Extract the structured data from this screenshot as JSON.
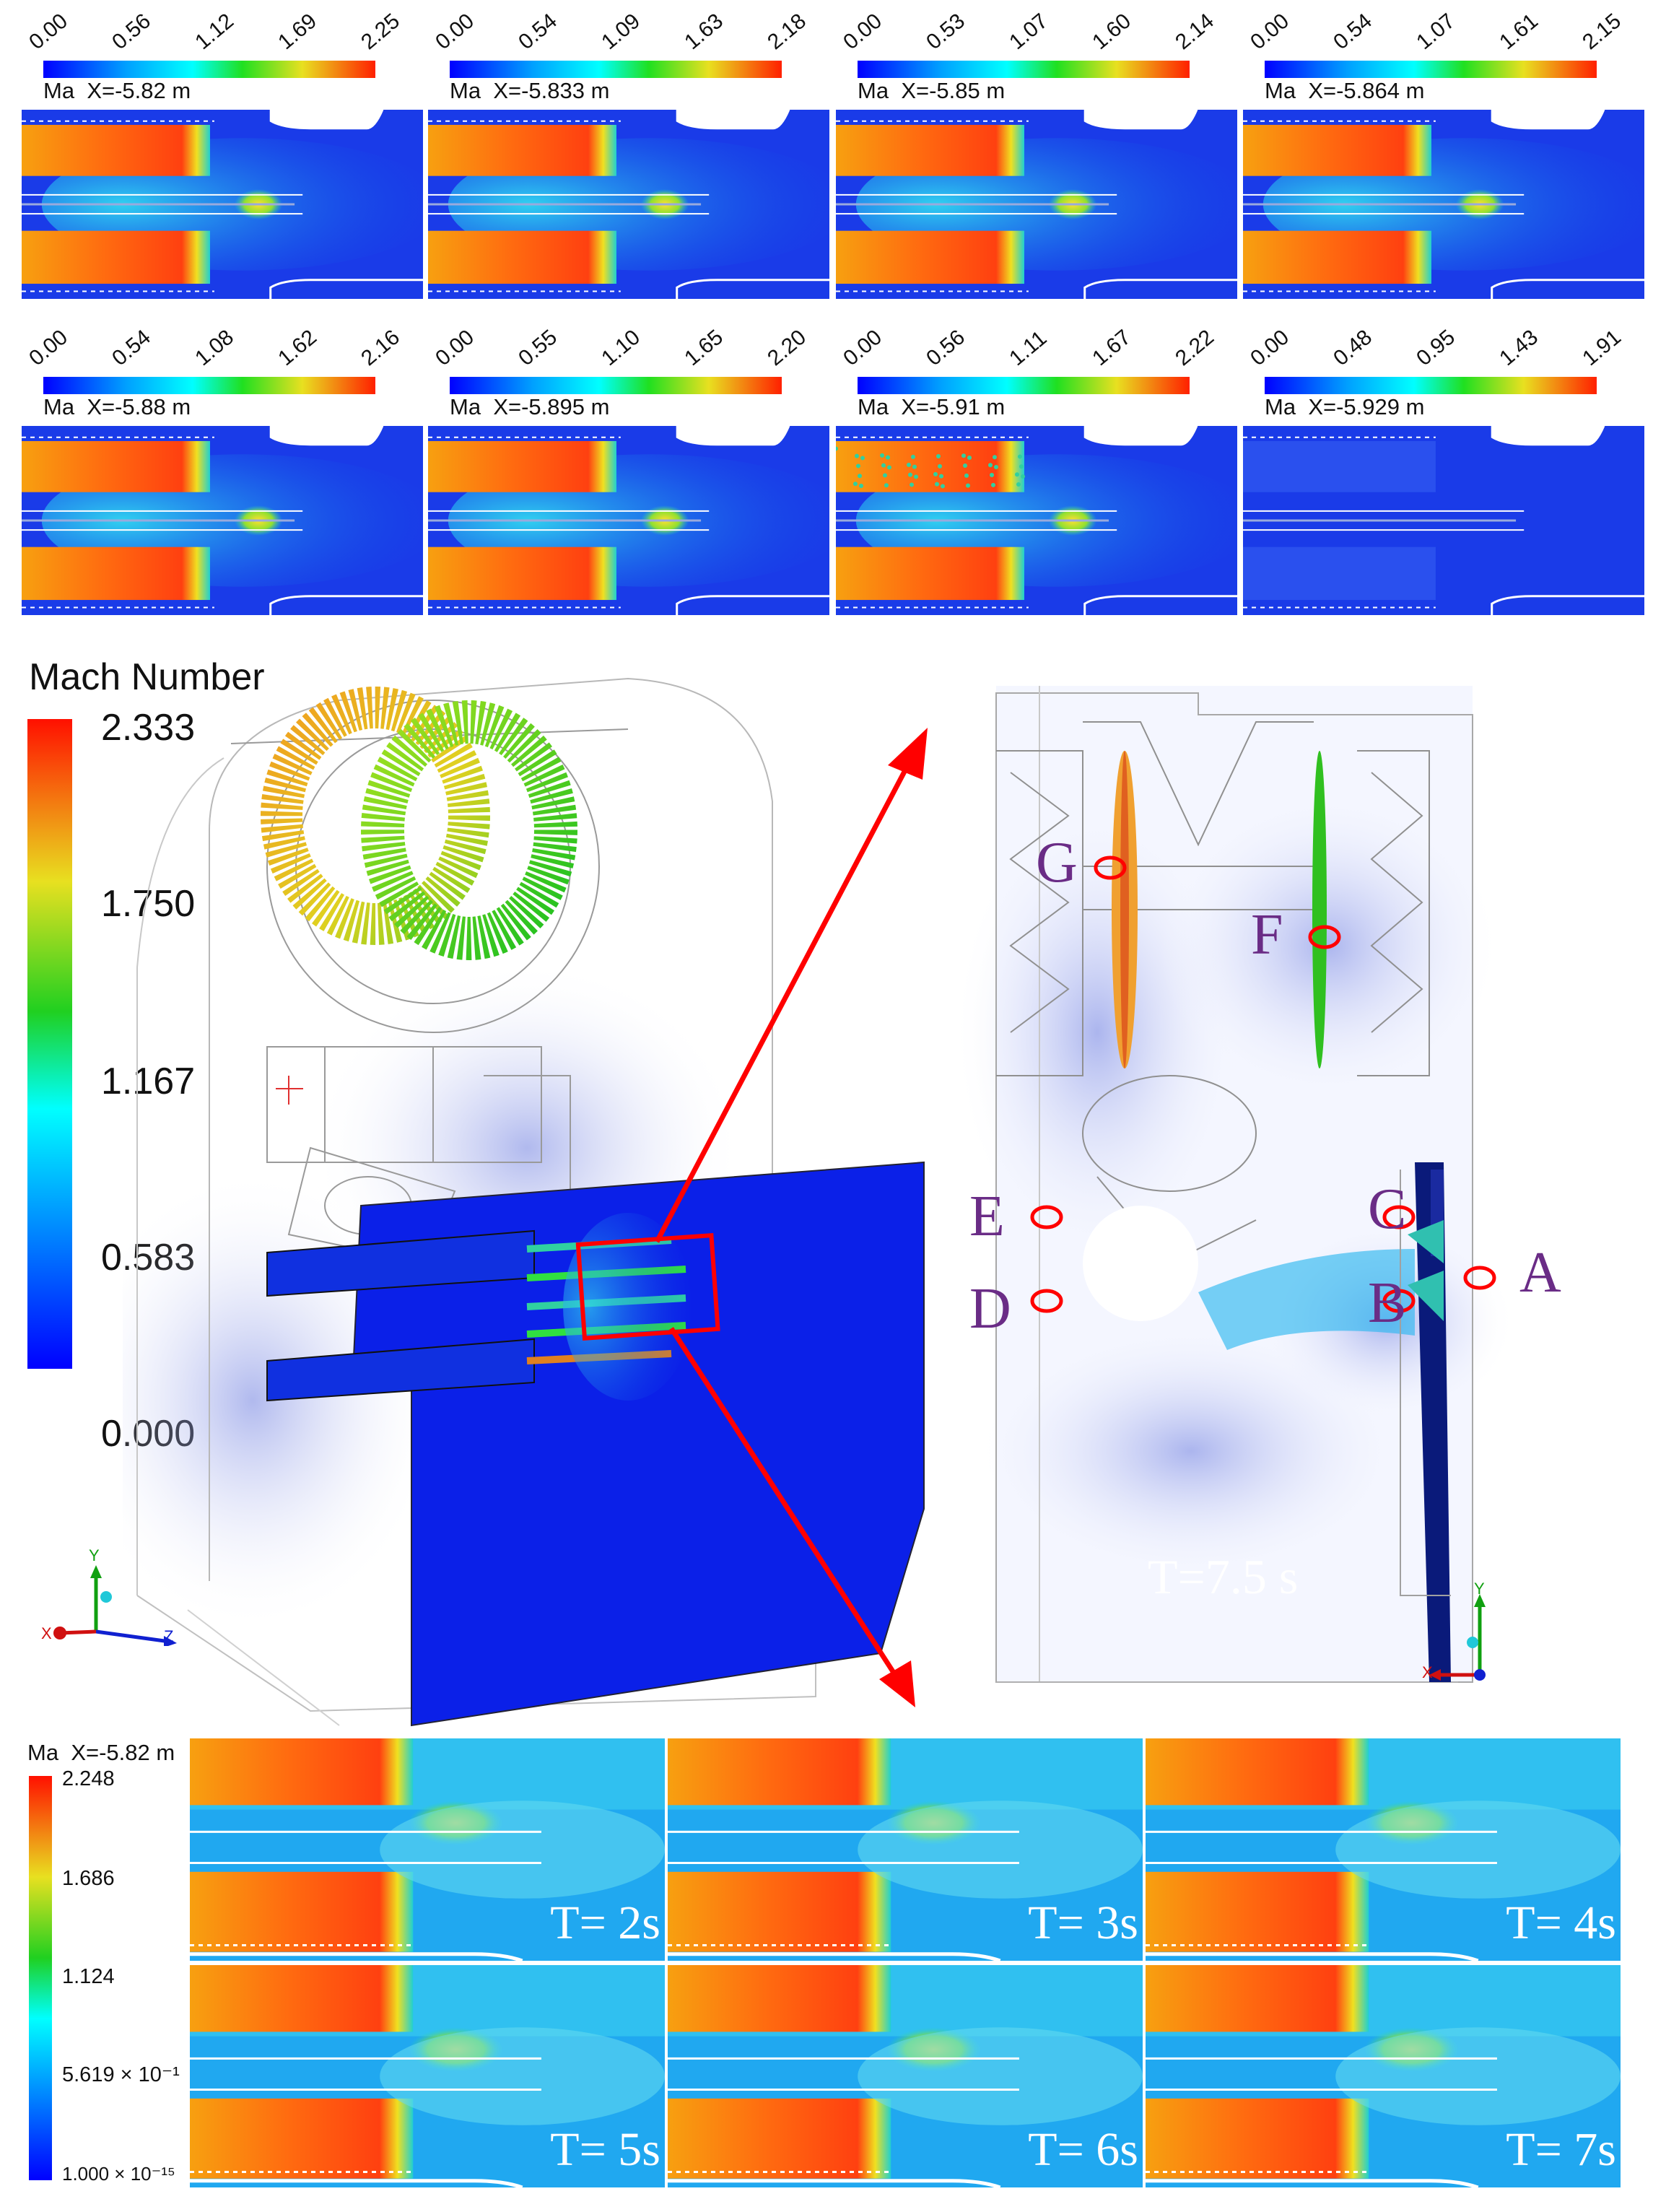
{
  "top_panels": [
    {
      "ticks": [
        "0.00",
        "0.56",
        "1.12",
        "1.69",
        "2.25"
      ],
      "var": "Ma",
      "x_pos": "X=-5.82 m",
      "variant": "normal"
    },
    {
      "ticks": [
        "0.00",
        "0.54",
        "1.09",
        "1.63",
        "2.18"
      ],
      "var": "Ma",
      "x_pos": "X=-5.833 m",
      "variant": "normal"
    },
    {
      "ticks": [
        "0.00",
        "0.53",
        "1.07",
        "1.60",
        "2.14"
      ],
      "var": "Ma",
      "x_pos": "X=-5.85 m",
      "variant": "normal"
    },
    {
      "ticks": [
        "0.00",
        "0.54",
        "1.07",
        "1.61",
        "2.15"
      ],
      "var": "Ma",
      "x_pos": "X=-5.864 m",
      "variant": "normal"
    },
    {
      "ticks": [
        "0.00",
        "0.54",
        "1.08",
        "1.62",
        "2.16"
      ],
      "var": "Ma",
      "x_pos": "X=-5.88 m",
      "variant": "normal"
    },
    {
      "ticks": [
        "0.00",
        "0.55",
        "1.10",
        "1.65",
        "2.20"
      ],
      "var": "Ma",
      "x_pos": "X=-5.895 m",
      "variant": "normal"
    },
    {
      "ticks": [
        "0.00",
        "0.56",
        "1.11",
        "1.67",
        "2.22"
      ],
      "var": "Ma",
      "x_pos": "X=-5.91 m",
      "variant": "speckled"
    },
    {
      "ticks": [
        "0.00",
        "0.48",
        "0.95",
        "1.43",
        "1.91"
      ],
      "var": "Ma",
      "x_pos": "X=-5.929 m",
      "variant": "empty"
    }
  ],
  "main_legend": {
    "title": "Mach Number",
    "ticks": [
      "2.333",
      "1.750",
      "1.167",
      "0.583",
      "0.000"
    ]
  },
  "axes_left": {
    "y": "Y",
    "x": "X",
    "z": "Z"
  },
  "axes_right": {
    "y": "Y",
    "x": "X"
  },
  "probe_labels": [
    "G",
    "F",
    "E",
    "D",
    "C",
    "B",
    "A"
  ],
  "time_label": "T=7.5 s",
  "bottom_legend": {
    "var": "Ma",
    "x_pos": "X=-5.82 m",
    "ticks": [
      "2.248",
      "1.686",
      "1.124",
      "5.619 × 10⁻¹",
      "1.000 × 10⁻¹⁵"
    ]
  },
  "time_panels": [
    "T= 2s",
    "T= 3s",
    "T= 4s",
    "T= 5s",
    "T= 6s",
    "T= 7s"
  ],
  "colors": {
    "low": "#1020e0",
    "mid": "#18e8e0",
    "green": "#30d030",
    "high": "#ff6010",
    "max": "#e01010",
    "probe": "#ff0000",
    "letter": "#6a2c86"
  }
}
